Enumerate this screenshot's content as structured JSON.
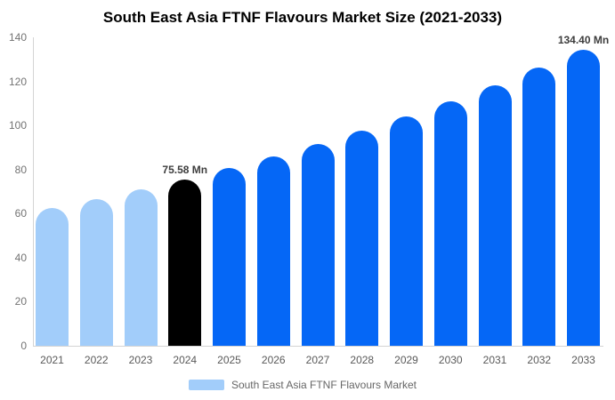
{
  "title": "South East Asia FTNF Flavours Market Size (2021-2033)",
  "legend": {
    "label": "South East Asia FTNF Flavours Market"
  },
  "colors": {
    "bar_light": "#a2cdfa",
    "bar_dark": "#0567f6",
    "bar_highlight": "#000000",
    "axis_line": "#d4d4d4",
    "y_tick_text": "#737373",
    "x_tick_text": "#595959",
    "value_label_text": "#3d3d3d",
    "legend_text": "#666666",
    "title_text": "#000000"
  },
  "chart_data": {
    "type": "bar",
    "title": "South East Asia FTNF Flavours Market Size (2021-2033)",
    "unit": "Mn",
    "categories": [
      "2021",
      "2022",
      "2023",
      "2024",
      "2025",
      "2026",
      "2027",
      "2028",
      "2029",
      "2030",
      "2031",
      "2032",
      "2033"
    ],
    "values": [
      62.4,
      66.5,
      70.9,
      75.58,
      80.6,
      85.9,
      91.6,
      97.6,
      104.1,
      110.9,
      118.3,
      126.1,
      134.4
    ],
    "bar_styles": [
      "light",
      "light",
      "light",
      "highlight",
      "dark",
      "dark",
      "dark",
      "dark",
      "dark",
      "dark",
      "dark",
      "dark",
      "dark"
    ],
    "data_labels": [
      {
        "category": "2024",
        "text": "75.58 Mn"
      },
      {
        "category": "2033",
        "text": "134.40 Mn"
      }
    ],
    "xlabel": "",
    "ylabel": "",
    "ylim": [
      0,
      140
    ],
    "yticks": [
      0,
      20,
      40,
      60,
      80,
      100,
      120,
      140
    ],
    "grid": false,
    "legend_position": "bottom",
    "legend_entries": [
      "South East Asia FTNF Flavours Market"
    ]
  }
}
